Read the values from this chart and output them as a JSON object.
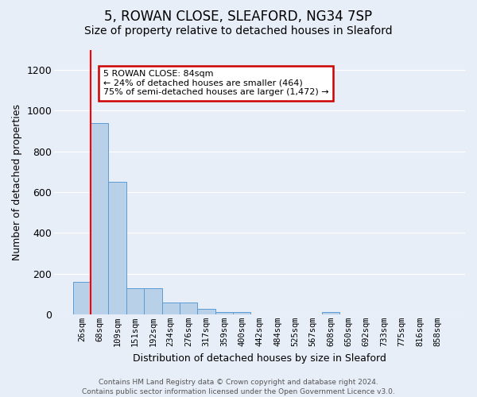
{
  "title": "5, ROWAN CLOSE, SLEAFORD, NG34 7SP",
  "subtitle": "Size of property relative to detached houses in Sleaford",
  "xlabel": "Distribution of detached houses by size in Sleaford",
  "ylabel": "Number of detached properties",
  "footer_line1": "Contains HM Land Registry data © Crown copyright and database right 2024.",
  "footer_line2": "Contains public sector information licensed under the Open Government Licence v3.0.",
  "categories": [
    "26sqm",
    "68sqm",
    "109sqm",
    "151sqm",
    "192sqm",
    "234sqm",
    "276sqm",
    "317sqm",
    "359sqm",
    "400sqm",
    "442sqm",
    "484sqm",
    "525sqm",
    "567sqm",
    "608sqm",
    "650sqm",
    "692sqm",
    "733sqm",
    "775sqm",
    "816sqm",
    "858sqm"
  ],
  "values": [
    160,
    940,
    650,
    130,
    130,
    60,
    60,
    25,
    12,
    12,
    0,
    0,
    0,
    0,
    12,
    0,
    0,
    0,
    0,
    0,
    0
  ],
  "ylim": [
    0,
    1300
  ],
  "yticks": [
    0,
    200,
    400,
    600,
    800,
    1000,
    1200
  ],
  "bar_color": "#b8d0e8",
  "bar_edge_color": "#5b9bd5",
  "red_line_x": 1.0,
  "background_color": "#e8eef8",
  "grid_color": "#ffffff",
  "annotation_text": "5 ROWAN CLOSE: 84sqm\n← 24% of detached houses are smaller (464)\n75% of semi-detached houses are larger (1,472) →",
  "annotation_box_color": "#ffffff",
  "annotation_box_edge": "#cc0000",
  "title_fontsize": 12,
  "subtitle_fontsize": 10,
  "tick_fontsize": 7.5,
  "ylabel_fontsize": 9,
  "xlabel_fontsize": 9,
  "footer_fontsize": 6.5
}
